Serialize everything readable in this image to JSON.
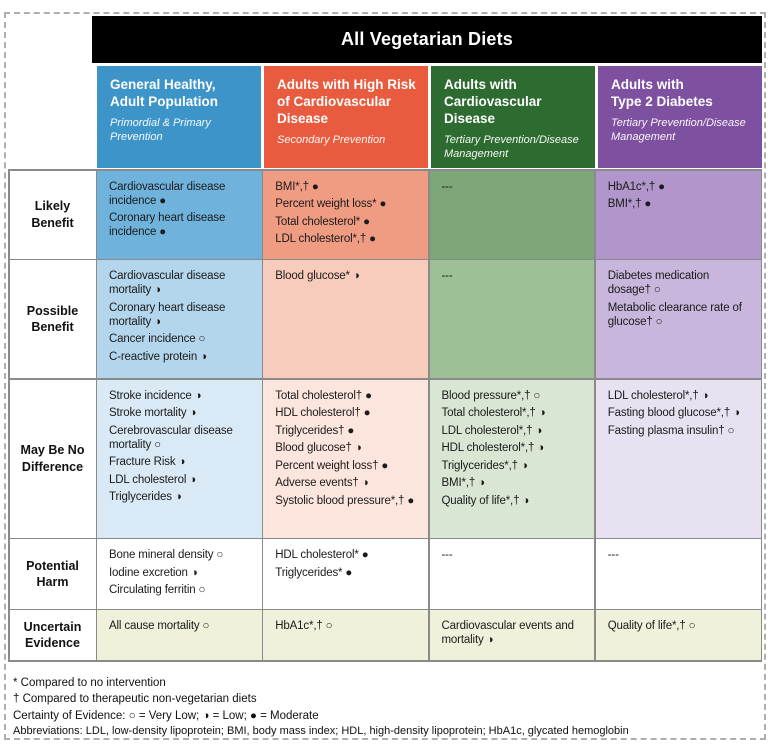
{
  "title": "All Vegetarian Diets",
  "columns": [
    {
      "id": "general-healthy-adult-population",
      "title_lines": [
        "General Healthy,",
        "Adult Population"
      ],
      "subtitle": "Primordial & Primary Prevention",
      "header_color": "#3d94c9",
      "row_tints": [
        "#6fb3dc",
        "#b3d6ec",
        "#d9e9f5",
        "#ffffff",
        "#eff1da"
      ]
    },
    {
      "id": "adults-high-risk-cardiovascular-disease",
      "title_lines": [
        "Adults with High Risk",
        "of Cardiovascular",
        "Disease"
      ],
      "subtitle": "Secondary Prevention",
      "header_color": "#e85b3e",
      "row_tints": [
        "#f09c83",
        "#f8ccbd",
        "#fce5dc",
        "#ffffff",
        "#eff1da"
      ]
    },
    {
      "id": "adults-with-cardiovascular-disease",
      "title_lines": [
        "Adults with",
        "Cardiovascular",
        "Disease"
      ],
      "subtitle": "Tertiary Prevention/Disease Management",
      "header_color": "#2e6b31",
      "row_tints": [
        "#7ea779",
        "#9ec096",
        "#d8e6d3",
        "#ffffff",
        "#eff1da"
      ]
    },
    {
      "id": "adults-with-type-2-diabetes",
      "title_lines": [
        "Adults with",
        "Type 2 Diabetes"
      ],
      "subtitle": "Tertiary Prevention/Disease Management",
      "header_color": "#7e50a0",
      "row_tints": [
        "#b096ca",
        "#c8b6dc",
        "#e7e1f1",
        "#ffffff",
        "#eff1da"
      ]
    }
  ],
  "rows": [
    {
      "label": "Likely Benefit",
      "cells": [
        [
          "Cardiovascular disease incidence ●",
          "Coronary heart disease incidence ●"
        ],
        [
          "BMI*,† ●",
          "Percent weight loss* ●",
          "Total cholesterol* ●",
          "LDL cholesterol*,† ●"
        ],
        [
          "---"
        ],
        [
          "HbA1c*,† ●",
          "BMI*,† ●"
        ]
      ]
    },
    {
      "label": "Possible Benefit",
      "cells": [
        [
          "Cardiovascular disease mortality ◑",
          "Coronary heart disease mortality ◑",
          "Cancer incidence ○",
          "C-reactive protein ◑"
        ],
        [
          "Blood glucose* ◑"
        ],
        [
          "---"
        ],
        [
          "Diabetes medication dosage† ○",
          "Metabolic clearance rate of glucose† ○"
        ]
      ]
    },
    {
      "label": "May Be No Difference",
      "cells": [
        [
          "Stroke incidence ◑",
          "Stroke mortality ◑",
          "Cerebrovascular disease mortality ○",
          "Fracture Risk ◑",
          "LDL cholesterol ◑",
          "Triglycerides ◑"
        ],
        [
          "Total cholesterol† ●",
          "HDL cholesterol† ●",
          "Triglycerides† ●",
          "Blood glucose† ◑",
          "Percent weight loss† ●",
          "Adverse events† ◑",
          "Systolic blood pressure*,† ●"
        ],
        [
          "Blood pressure*,† ○",
          "Total cholesterol*,† ◑",
          "LDL cholesterol*,† ◑",
          "HDL cholesterol*,† ◑",
          "Triglycerides*,† ◑",
          "BMI*,† ◑",
          "Quality of life*,† ◑"
        ],
        [
          "LDL cholesterol*,† ◑",
          "Fasting blood glucose*,† ◑",
          "Fasting plasma insulin† ○"
        ]
      ]
    },
    {
      "label": "Potential Harm",
      "cells": [
        [
          "Bone mineral density ○",
          "Iodine excretion ◑",
          "Circulating ferritin ○"
        ],
        [
          "HDL cholesterol* ●",
          "Triglycerides* ●"
        ],
        [
          "---"
        ],
        [
          "---"
        ]
      ]
    },
    {
      "label": "Uncertain Evidence",
      "cells": [
        [
          "All cause mortality ○"
        ],
        [
          "HbA1c*,† ○"
        ],
        [
          "Cardiovascular events and mortality ◑"
        ],
        [
          "Quality of life*,† ○"
        ]
      ]
    }
  ],
  "certainty_legend": [
    {
      "symbol": "○",
      "label": "Very Low"
    },
    {
      "symbol": "◑",
      "label": "Low"
    },
    {
      "symbol": "●",
      "label": "Moderate"
    }
  ],
  "footnotes": [
    "* Compared to no intervention",
    "† Compared to therapeutic non-vegetarian diets",
    "Certainty of Evidence:  ○ = Very Low;  ◑ = Low;  ● = Moderate",
    "Abbreviations: LDL, low-density lipoprotein; BMI, body mass index; HDL, high-density lipoprotein; HbA1c, glycated hemoglobin"
  ]
}
